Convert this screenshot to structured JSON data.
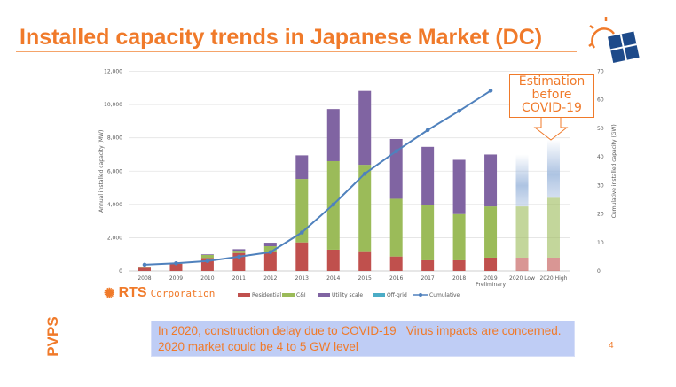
{
  "slide": {
    "title": "Installed capacity trends in Japanese Market (DC)",
    "side_label": "PVPS",
    "company": {
      "name": "RTS",
      "suffix": "Corporation"
    },
    "estimation_callout": [
      "Estimation",
      "before",
      "COVID-19"
    ],
    "note_lines": [
      "In 2020, construction delay due to COVID-19   Virus impacts are concerned.",
      "2020 market could be 4 to 5 GW level"
    ],
    "page_number": "4",
    "colors": {
      "accent": "#f07a2a",
      "note_bg": "#bfcdf5"
    }
  },
  "chart_data": {
    "type": "bar",
    "stacked": true,
    "categories": [
      "2008",
      "2009",
      "2010",
      "2011",
      "2012",
      "2013",
      "2014",
      "2015",
      "2016",
      "2017",
      "2018",
      "2019",
      "2020 Low",
      "2020 High"
    ],
    "category_sublabels": {
      "2019": "Preliminary"
    },
    "ylabel": "Annual installed capacity (MW)",
    "y2label": "Cumulative installed capacity (GW)",
    "ylim": [
      0,
      12000
    ],
    "y2lim": [
      0,
      70
    ],
    "yticks": [
      "0",
      "2,000",
      "4,000",
      "6,000",
      "8,000",
      "10,000",
      "12,000"
    ],
    "y2ticks": [
      "0",
      "10",
      "20",
      "30",
      "40",
      "50",
      "60",
      "70"
    ],
    "grid": true,
    "legend_position": "bottom",
    "series": [
      {
        "name": "Residential",
        "color": "#c0504d",
        "values": [
          200,
          430,
          780,
          1080,
          1130,
          1720,
          1280,
          1190,
          870,
          640,
          640,
          800,
          800,
          800
        ]
      },
      {
        "name": "C&I",
        "color": "#9bbb59",
        "values": [
          20,
          30,
          180,
          140,
          360,
          3810,
          5320,
          5190,
          3470,
          3310,
          2780,
          3080,
          3080,
          3600
        ]
      },
      {
        "name": "Utility scale",
        "color": "#8064a2",
        "values": [
          0,
          0,
          40,
          90,
          210,
          1420,
          3130,
          4440,
          3590,
          3510,
          3260,
          3120,
          null,
          null
        ]
      },
      {
        "name": "Off-grid",
        "color": "#4bacc6",
        "values": [
          0,
          0,
          0,
          0,
          0,
          0,
          0,
          0,
          0,
          0,
          0,
          0,
          0,
          0
        ]
      },
      {
        "name": "Estimation",
        "color": "#9fb9dd",
        "values": [
          null,
          null,
          null,
          null,
          null,
          null,
          null,
          null,
          null,
          null,
          null,
          null,
          3120,
          3500
        ]
      }
    ],
    "estimated_categories": [
      "2020 Low",
      "2020 High"
    ],
    "line": {
      "name": "Cumulative",
      "color": "#4f81bd",
      "axis": "y2",
      "values": [
        2.2,
        2.7,
        3.5,
        5.0,
        6.6,
        13.5,
        23.3,
        34.1,
        42.0,
        49.4,
        56.1,
        63.2,
        null,
        null
      ]
    },
    "legend": [
      "Residential",
      "C&I",
      "Utility scale",
      "Off-grid",
      "Cumulative"
    ]
  }
}
